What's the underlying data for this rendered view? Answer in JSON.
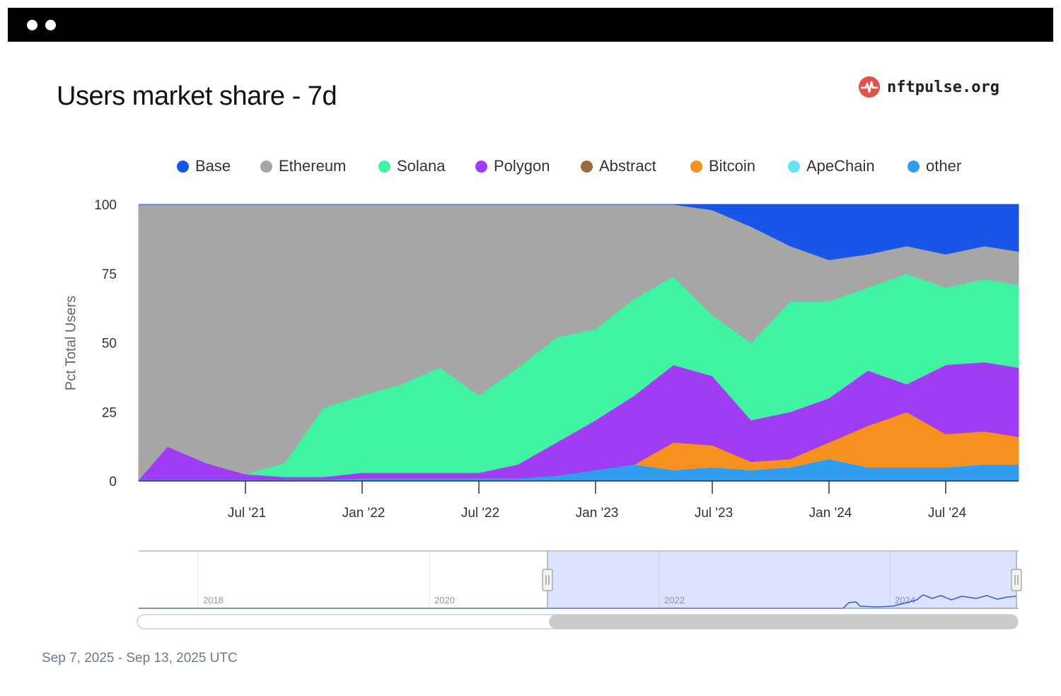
{
  "window": {
    "buttons": [
      "dot",
      "dot"
    ]
  },
  "title": "Users market share - 7d",
  "brand": {
    "text": "nftpulse.org",
    "icon": "pulse-icon",
    "color": "#e0524a"
  },
  "footer": "Sep 7, 2025 - Sep 13, 2025 UTC",
  "chart_data": {
    "type": "area",
    "stacking": "percent",
    "ylabel": "Pct Total Users",
    "ylim": [
      0,
      100
    ],
    "yticks": [
      "0",
      "25",
      "50",
      "75",
      "100"
    ],
    "xticks": [
      "Jul '21",
      "Jan '22",
      "Jul '22",
      "Jan '23",
      "Jul '23",
      "Jan '24",
      "Jul '24"
    ],
    "x": [
      "2021-01",
      "2021-03",
      "2021-05",
      "2021-07",
      "2021-09",
      "2021-11",
      "2022-01",
      "2022-03",
      "2022-05",
      "2022-07",
      "2022-09",
      "2022-11",
      "2023-01",
      "2023-03",
      "2023-05",
      "2023-07",
      "2023-09",
      "2023-11",
      "2024-01",
      "2024-03",
      "2024-05",
      "2024-07",
      "2024-09",
      "2024-11"
    ],
    "legend_position": "top",
    "grid": true,
    "series": [
      {
        "name": "other",
        "color": "#2f9ef0",
        "values": [
          0.5,
          0.5,
          0.5,
          0.5,
          0.5,
          0.5,
          1,
          1,
          1,
          1,
          1,
          2,
          4,
          6,
          4,
          5,
          4,
          5,
          8,
          5,
          5,
          5,
          6,
          6
        ]
      },
      {
        "name": "ApeChain",
        "color": "#63e4f5",
        "values": [
          0,
          0,
          0,
          0,
          0,
          0,
          0,
          0,
          0,
          0,
          0,
          0,
          0,
          0,
          0,
          0,
          0,
          0,
          0,
          0,
          0,
          0,
          0,
          0
        ]
      },
      {
        "name": "Bitcoin",
        "color": "#f7901e",
        "values": [
          0,
          0,
          0,
          0,
          0,
          0,
          0,
          0,
          0,
          0,
          0,
          0,
          0,
          0,
          10,
          8,
          3,
          3,
          6,
          15,
          20,
          12,
          12,
          10
        ]
      },
      {
        "name": "Abstract",
        "color": "#9a6a3c",
        "values": [
          0,
          0,
          0,
          0,
          0,
          0,
          0,
          0,
          0,
          0,
          0,
          0,
          0,
          0,
          0,
          0,
          0,
          0,
          0,
          0,
          0,
          0,
          0,
          0
        ]
      },
      {
        "name": "Polygon",
        "color": "#a13cf5",
        "values": [
          0,
          12,
          6,
          2,
          1,
          1,
          2,
          2,
          2,
          2,
          5,
          12,
          18,
          25,
          28,
          25,
          15,
          17,
          16,
          20,
          10,
          25,
          25,
          25
        ]
      },
      {
        "name": "Solana",
        "color": "#3ff3a0",
        "values": [
          0,
          0,
          0,
          0,
          5,
          25,
          28,
          32,
          38,
          28,
          35,
          38,
          33,
          35,
          32,
          22,
          28,
          40,
          35,
          30,
          40,
          28,
          30,
          30
        ]
      },
      {
        "name": "Ethereum",
        "color": "#a6a6a6",
        "values": [
          99.5,
          87.5,
          93.5,
          97.5,
          93.5,
          73.5,
          69,
          65,
          59,
          69,
          59,
          48,
          45,
          34,
          26,
          38,
          42,
          20,
          15,
          12,
          10,
          12,
          12,
          12
        ]
      },
      {
        "name": "Base",
        "color": "#1756e8",
        "values": [
          0,
          0,
          0,
          0,
          0,
          0,
          0,
          0,
          0,
          0,
          0,
          0,
          0,
          0,
          0,
          2,
          8,
          15,
          20,
          18,
          15,
          18,
          15,
          17
        ]
      }
    ],
    "legend_order": [
      "Base",
      "Ethereum",
      "Solana",
      "Polygon",
      "Abstract",
      "Bitcoin",
      "ApeChain",
      "other"
    ],
    "navigator": {
      "years": [
        "2018",
        "2020",
        "2022",
        "2024"
      ]
    }
  }
}
